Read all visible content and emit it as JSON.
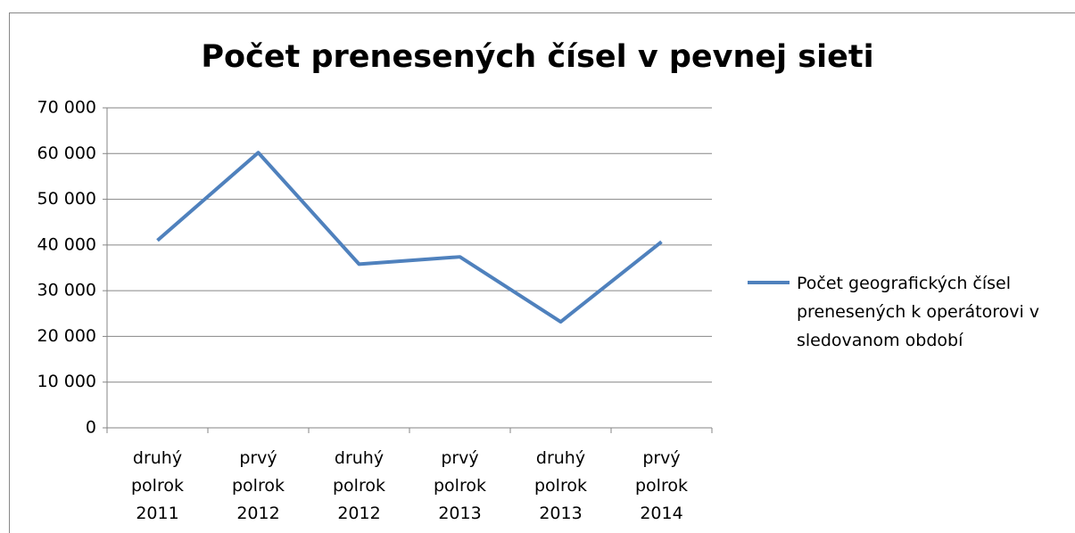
{
  "chart_data": {
    "type": "line",
    "title": "Počet prenesených čísel  v pevnej sieti",
    "categories": [
      "druhý polrok 2011",
      "prvý polrok 2012",
      "druhý polrok 2012",
      "prvý polrok 2013",
      "druhý polrok 2013",
      "prvý polrok 2014"
    ],
    "series": [
      {
        "name": "Počet geografických čísel prenesených k operátorovi v sledovanom období",
        "color": "#4f81bd",
        "values": [
          41000,
          60200,
          35800,
          37400,
          23200,
          40700
        ]
      }
    ],
    "ylim": [
      0,
      70000
    ],
    "yticks": [
      {
        "value": 0,
        "label": "0"
      },
      {
        "value": 10000,
        "label": "10 000"
      },
      {
        "value": 20000,
        "label": "20 000"
      },
      {
        "value": 30000,
        "label": "30 000"
      },
      {
        "value": 40000,
        "label": "40 000"
      },
      {
        "value": 50000,
        "label": "50 000"
      },
      {
        "value": 60000,
        "label": "60 000"
      },
      {
        "value": 70000,
        "label": "70 000"
      }
    ],
    "grid": true,
    "legend": "right"
  }
}
